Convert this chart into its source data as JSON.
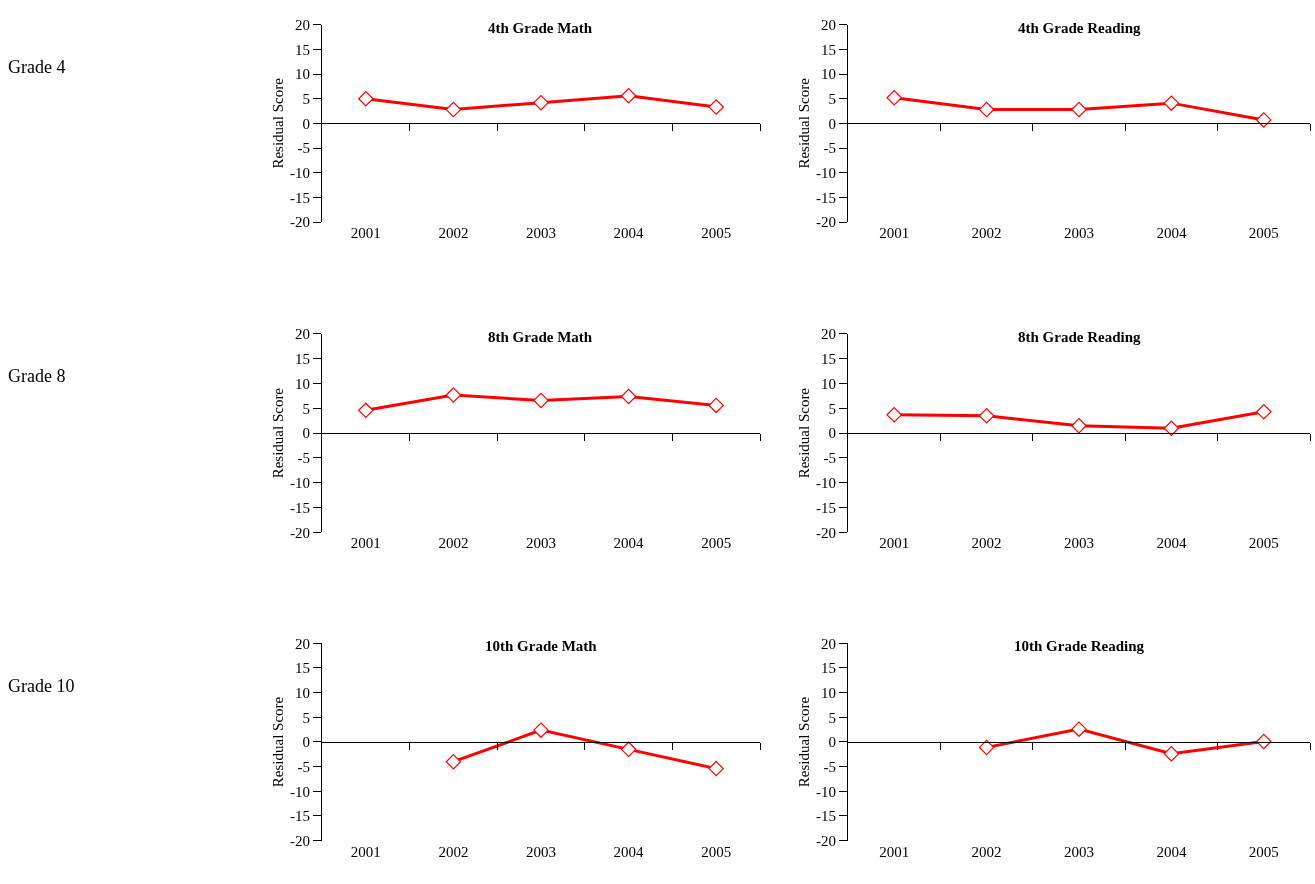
{
  "chart_data": [
    {
      "type": "line",
      "title": "4th Grade Math",
      "ylabel": "Residual Score",
      "annotations": [
        "Grade 4"
      ],
      "categories": [
        "2001",
        "2002",
        "2003",
        "2004",
        "2005"
      ],
      "series": [
        {
          "color": "#ff0000",
          "values": [
            5.0,
            2.8,
            4.2,
            5.6,
            3.3
          ]
        }
      ],
      "ylim": [
        -20,
        20
      ],
      "yticks": [
        -20,
        -15,
        -10,
        -5,
        0,
        5,
        10,
        15,
        20
      ],
      "marker": "diamond",
      "line_style": "solid"
    },
    {
      "type": "line",
      "title": "4th Grade Reading",
      "ylabel": "Residual Score",
      "categories": [
        "2001",
        "2002",
        "2003",
        "2004",
        "2005"
      ],
      "series": [
        {
          "color": "#ff0000",
          "values": [
            5.2,
            2.8,
            2.8,
            4.1,
            0.7
          ]
        }
      ],
      "ylim": [
        -20,
        20
      ],
      "yticks": [
        -20,
        -15,
        -10,
        -5,
        0,
        5,
        10,
        15,
        20
      ],
      "marker": "diamond",
      "line_style": "solid"
    },
    {
      "type": "line",
      "title": "8th Grade Math",
      "ylabel": "Residual Score",
      "annotations": [
        "Grade 8"
      ],
      "categories": [
        "2001",
        "2002",
        "2003",
        "2004",
        "2005"
      ],
      "series": [
        {
          "color": "#ff0000",
          "values": [
            4.6,
            7.7,
            6.6,
            7.4,
            5.6
          ]
        }
      ],
      "ylim": [
        -20,
        20
      ],
      "yticks": [
        -20,
        -15,
        -10,
        -5,
        0,
        5,
        10,
        15,
        20
      ],
      "marker": "diamond",
      "line_style": "solid"
    },
    {
      "type": "line",
      "title": "8th Grade Reading",
      "ylabel": "Residual Score",
      "categories": [
        "2001",
        "2002",
        "2003",
        "2004",
        "2005"
      ],
      "series": [
        {
          "color": "#ff0000",
          "values": [
            3.7,
            3.5,
            1.5,
            1.0,
            4.3
          ]
        }
      ],
      "ylim": [
        -20,
        20
      ],
      "yticks": [
        -20,
        -15,
        -10,
        -5,
        0,
        5,
        10,
        15,
        20
      ],
      "marker": "diamond",
      "line_style": "solid"
    },
    {
      "type": "line",
      "title": "10th Grade Math",
      "ylabel": "Residual Score",
      "annotations": [
        "Grade 10"
      ],
      "categories": [
        "2001",
        "2002",
        "2003",
        "2004",
        "2005"
      ],
      "series": [
        {
          "color": "#ff0000",
          "values": [
            null,
            -4.0,
            2.4,
            -1.5,
            -5.4
          ]
        }
      ],
      "ylim": [
        -20,
        20
      ],
      "yticks": [
        -20,
        -15,
        -10,
        -5,
        0,
        5,
        10,
        15,
        20
      ],
      "marker": "diamond",
      "line_style": "solid"
    },
    {
      "type": "line",
      "title": "10th Grade Reading",
      "ylabel": "Residual Score",
      "categories": [
        "2001",
        "2002",
        "2003",
        "2004",
        "2005"
      ],
      "series": [
        {
          "color": "#ff0000",
          "values": [
            null,
            -1.1,
            2.6,
            -2.4,
            0.1
          ]
        }
      ],
      "ylim": [
        -20,
        20
      ],
      "yticks": [
        -20,
        -15,
        -10,
        -5,
        0,
        5,
        10,
        15,
        20
      ],
      "marker": "diamond",
      "line_style": "solid"
    }
  ]
}
